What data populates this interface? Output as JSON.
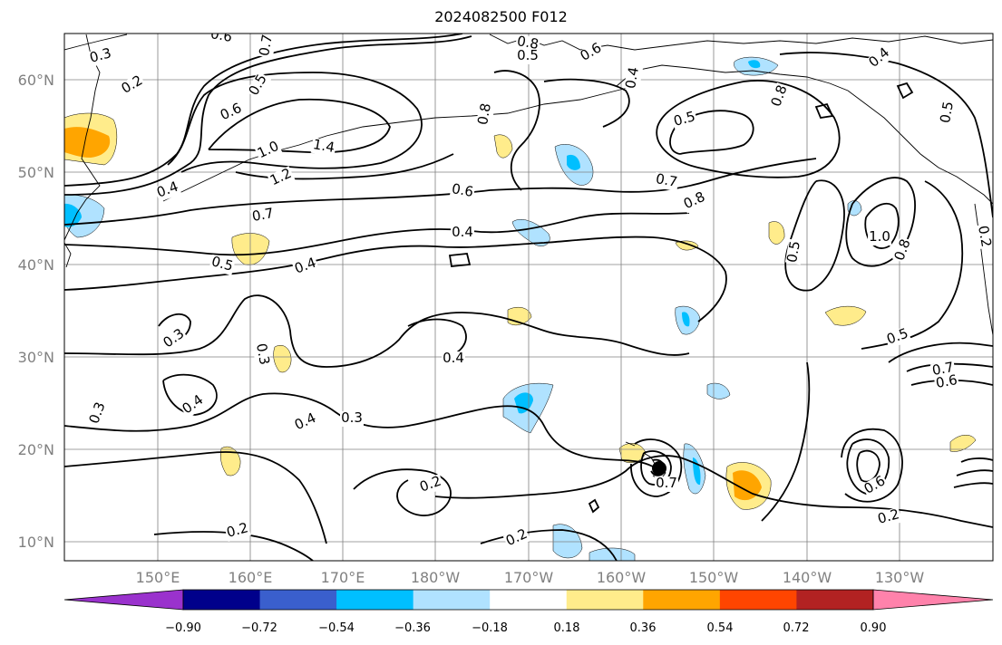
{
  "map": {
    "title": "2024082500 F012",
    "lat_labels": [
      "60°N",
      "50°N",
      "40°N",
      "30°N",
      "20°N",
      "10°N"
    ],
    "lon_labels": [
      "150°E",
      "160°E",
      "170°E",
      "180°W",
      "170°W",
      "160°W",
      "150°W",
      "140°W",
      "130°W"
    ],
    "contour_labels": [
      "0.3",
      "0.2",
      "0.6",
      "0.7",
      "0.8",
      "0.5",
      "0.6",
      "0.4",
      "0.5",
      "0.6",
      "1.0",
      "1.4",
      "0.4",
      "1.2",
      "0.7",
      "0.5",
      "0.4",
      "0.6",
      "0.4",
      "0.8",
      "0.5",
      "0.8",
      "0.7",
      "0.8",
      "1.0",
      "0.8",
      "0.5",
      "0.5",
      "0.4",
      "0.3",
      "0.3",
      "0.4",
      "0.4",
      "0.3",
      "0.4",
      "0.3",
      "0.5",
      "0.7",
      "0.6",
      "0.2",
      "0.2",
      "0.2",
      "0.2",
      "0.7",
      "0.6",
      "0.2"
    ],
    "colors": {
      "coast": "#000000",
      "grid": "#808080",
      "contour": "#000000"
    }
  },
  "colorbar": {
    "ticks": [
      "−0.90",
      "−0.72",
      "−0.54",
      "−0.36",
      "−0.18",
      "0.18",
      "0.36",
      "0.54",
      "0.72",
      "0.90"
    ],
    "colors": [
      "#9a32cd",
      "#00008b",
      "#3a5fcd",
      "#00bfff",
      "#b0e2ff",
      "#ffffff",
      "#ffec8b",
      "#ffa500",
      "#ff4500",
      "#b22222",
      "#ff82ab"
    ]
  }
}
